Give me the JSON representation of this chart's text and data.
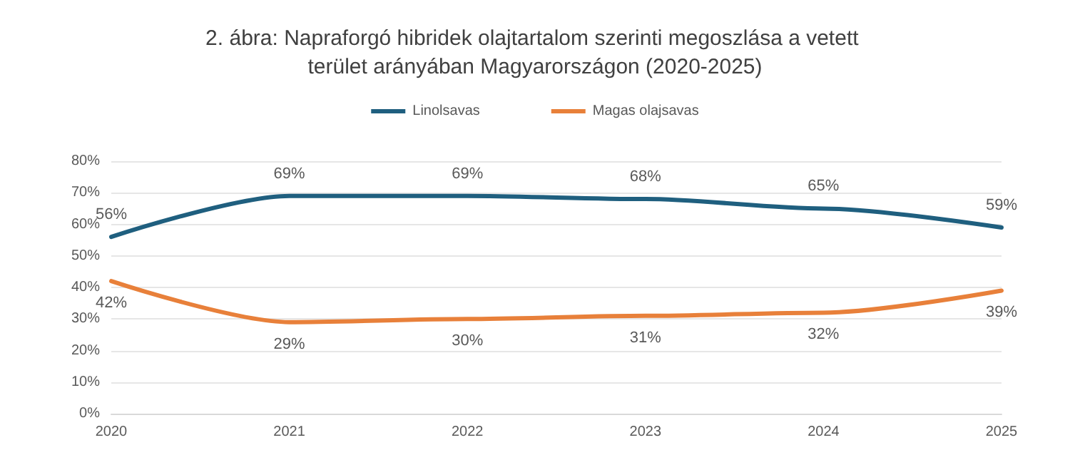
{
  "chart_data": {
    "type": "line",
    "title": "2. ábra: Napraforgó hibridek olajtartalom szerinti megoszlása a vetett terület arányában Magyarországon (2020-2025)",
    "categories": [
      "2020",
      "2021",
      "2022",
      "2023",
      "2024",
      "2025"
    ],
    "series": [
      {
        "name": "Linolsavas",
        "color": "#1f5f7f",
        "values": [
          56,
          69,
          69,
          68,
          65,
          59
        ],
        "value_labels": [
          "56%",
          "69%",
          "69%",
          "68%",
          "65%",
          "59%"
        ]
      },
      {
        "name": "Magas olajsavas",
        "color": "#e8803a",
        "values": [
          42,
          29,
          30,
          31,
          32,
          39
        ],
        "value_labels": [
          "42%",
          "29%",
          "30%",
          "31%",
          "32%",
          "39%"
        ]
      }
    ],
    "ylim": [
      0,
      80
    ],
    "yticks": [
      {
        "value": 0,
        "label": "0%"
      },
      {
        "value": 10,
        "label": "10%"
      },
      {
        "value": 20,
        "label": "20%"
      },
      {
        "value": 30,
        "label": "30%"
      },
      {
        "value": 40,
        "label": "40%"
      },
      {
        "value": 50,
        "label": "50%"
      },
      {
        "value": 60,
        "label": "60%"
      },
      {
        "value": 70,
        "label": "70%"
      },
      {
        "value": 80,
        "label": "80%"
      }
    ],
    "grid": "y",
    "legend": "top",
    "marker": "none",
    "line_style": "solid"
  }
}
